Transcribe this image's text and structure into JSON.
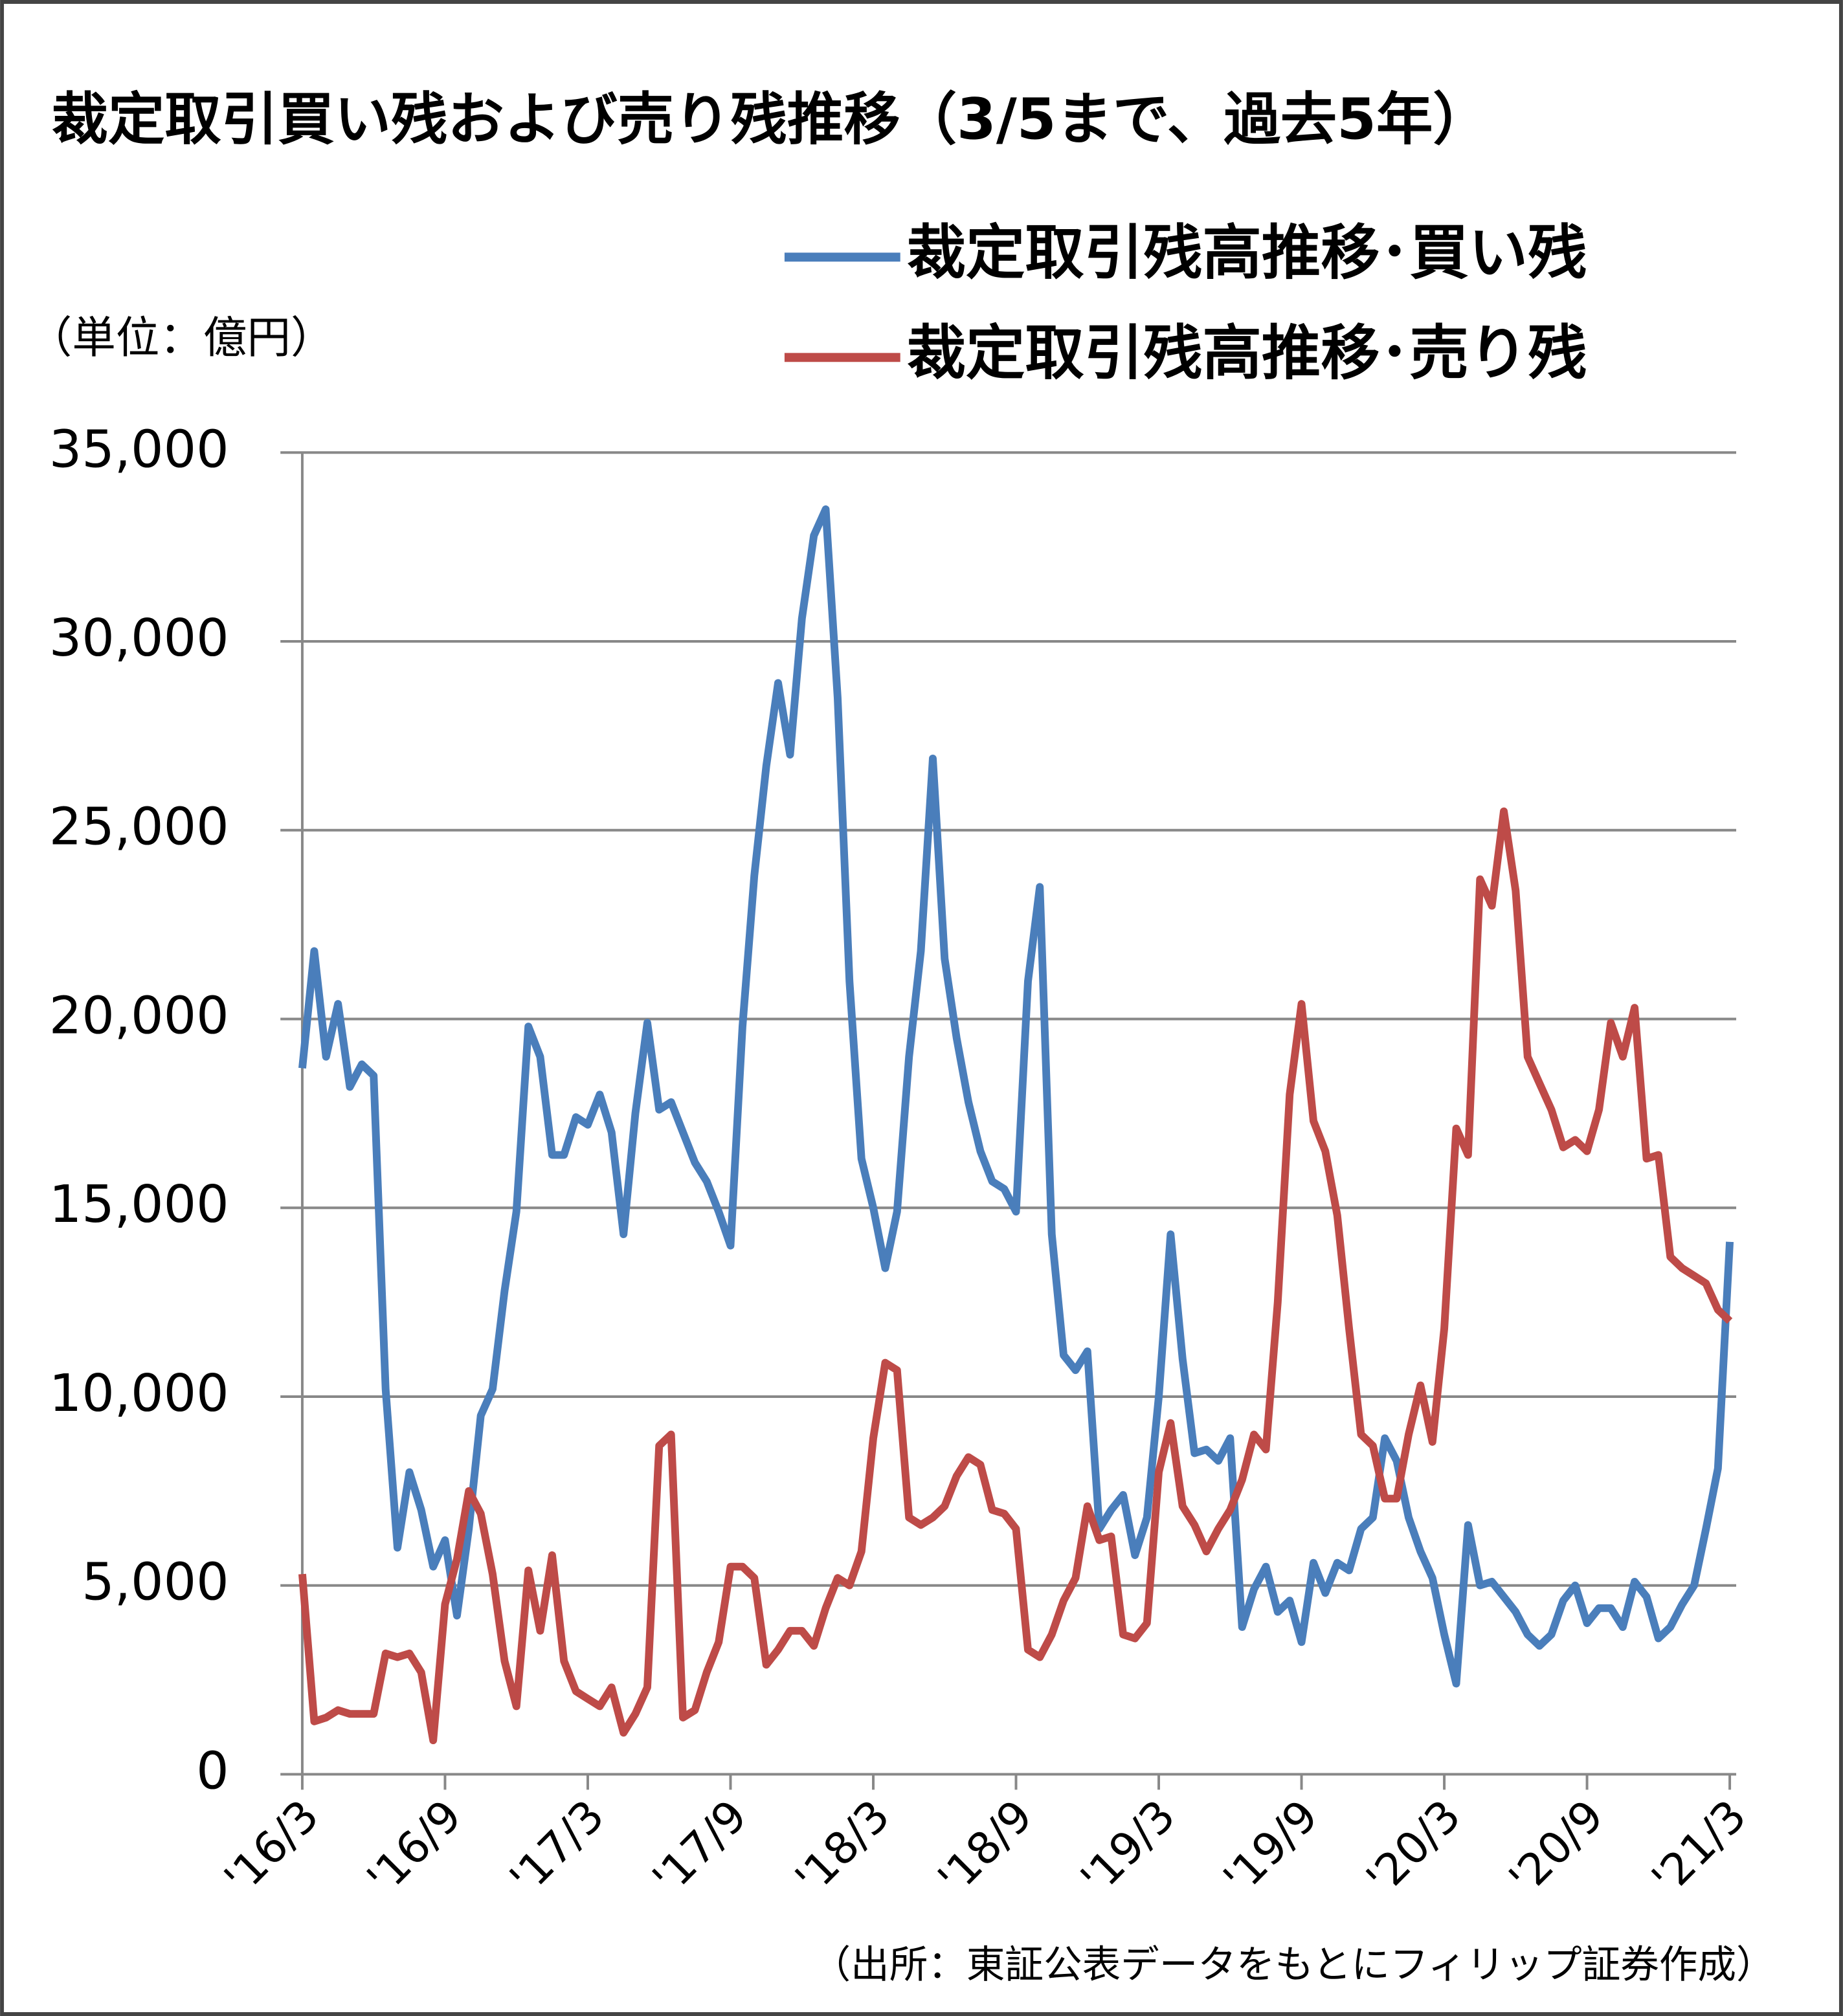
{
  "chart_data": {
    "type": "line",
    "title": "裁定取引買い残および売り残推移（3/5まで、過去5年）",
    "y_label": "（単位：億円）",
    "source": "（出所：東証公表データをもとにフィリップ証券作成）",
    "legend": "top-right",
    "grid": true,
    "x": [
      0,
      0.5,
      1,
      1.5,
      2,
      2.5,
      3,
      3.5,
      4,
      4.5,
      5,
      5.5,
      6,
      6.5,
      7,
      7.5,
      8,
      8.5,
      9,
      9.5,
      10,
      10.5,
      11,
      11.5,
      12,
      12.5,
      13,
      13.5,
      14,
      14.5,
      15,
      15.5,
      16,
      16.5,
      17,
      17.5,
      18,
      18.5,
      19,
      19.5,
      20,
      20.5,
      21,
      21.5,
      22,
      22.5,
      23,
      23.5,
      24,
      24.5,
      25,
      25.5,
      26,
      26.5,
      27,
      27.5,
      28,
      28.5,
      29,
      29.5,
      30,
      30.5,
      31,
      31.5,
      32,
      32.5,
      33,
      33.5,
      34,
      34.5,
      35,
      35.5,
      36,
      36.5,
      37,
      37.5,
      38,
      38.5,
      39,
      39.5,
      40,
      40.5,
      41,
      41.5,
      42,
      42.5,
      43,
      43.5,
      44,
      44.5,
      45,
      45.5,
      46,
      46.5,
      47,
      47.5,
      48,
      48.5,
      49,
      49.5,
      50,
      50.5,
      51,
      51.5,
      52,
      52.5,
      53,
      53.5,
      54,
      54.5,
      55,
      55.5,
      56,
      56.5,
      57,
      57.5,
      58,
      58.5,
      59,
      59.5,
      60
    ],
    "xlim": [
      0,
      60
    ],
    "xticks": [
      {
        "value": 0,
        "label": "'16/3"
      },
      {
        "value": 6,
        "label": "'16/9"
      },
      {
        "value": 12,
        "label": "'17/3"
      },
      {
        "value": 18,
        "label": "'17/9"
      },
      {
        "value": 24,
        "label": "'18/3"
      },
      {
        "value": 30,
        "label": "'18/9"
      },
      {
        "value": 36,
        "label": "'19/3"
      },
      {
        "value": 42,
        "label": "'19/9"
      },
      {
        "value": 48,
        "label": "'20/3"
      },
      {
        "value": 54,
        "label": "'20/9"
      },
      {
        "value": 60,
        "label": "'21/3"
      }
    ],
    "ylim": [
      0,
      35000
    ],
    "yticks": [
      0,
      {
        "value": 5000,
        "label": "5,000"
      },
      {
        "value": 10000,
        "label": "10,000"
      },
      {
        "value": 15000,
        "label": "15,000"
      },
      {
        "value": 20000,
        "label": "20,000"
      },
      {
        "value": 25000,
        "label": "25,000"
      },
      {
        "value": 30000,
        "label": "30,000"
      },
      {
        "value": 35000,
        "label": "35,000"
      }
    ],
    "series": [
      {
        "name": "裁定取引残高推移･買い残",
        "color": "#4a7ebb",
        "values": [
          18700,
          21800,
          19000,
          20400,
          18200,
          18800,
          18500,
          10200,
          6000,
          8000,
          7000,
          5500,
          6200,
          4200,
          6500,
          9500,
          10200,
          12800,
          14900,
          19800,
          19000,
          16400,
          16400,
          17400,
          17200,
          18000,
          17000,
          14300,
          17500,
          19900,
          17600,
          17800,
          17000,
          16200,
          15700,
          14900,
          14000,
          19800,
          23800,
          26700,
          28900,
          27000,
          30600,
          32800,
          33500,
          28500,
          21000,
          16300,
          15000,
          13400,
          14900,
          19000,
          21800,
          26900,
          21600,
          19500,
          17800,
          16500,
          15700,
          15500,
          14900,
          21000,
          23500,
          14300,
          11100,
          10700,
          11200,
          6500,
          7000,
          7400,
          5800,
          6800,
          10000,
          14300,
          11000,
          8500,
          8600,
          8300,
          8900,
          3900,
          4900,
          5500,
          4300,
          4600,
          3500,
          5600,
          4800,
          5600,
          5400,
          6500,
          6800,
          8900,
          8300,
          6800,
          5900,
          5200,
          3700,
          2400,
          6600,
          5000,
          5100,
          4700,
          4300,
          3700,
          3400,
          3700,
          4600,
          5000,
          4000,
          4400,
          4400,
          3900,
          5100,
          4700,
          3600,
          3900,
          4500,
          5000,
          6500,
          8100,
          14100
        ]
      },
      {
        "name": "裁定取引残高推移･売り残",
        "color": "#be4b48",
        "values": [
          5300,
          1400,
          1500,
          1700,
          1600,
          1600,
          1600,
          3200,
          3100,
          3200,
          2700,
          900,
          4500,
          5700,
          7500,
          6900,
          5300,
          3000,
          1800,
          5400,
          3800,
          5800,
          3000,
          2200,
          2000,
          1800,
          2300,
          1100,
          1600,
          2300,
          8700,
          9000,
          1500,
          1700,
          2700,
          3500,
          5500,
          5500,
          5200,
          2900,
          3300,
          3800,
          3800,
          3400,
          4400,
          5200,
          5000,
          5900,
          8900,
          10900,
          10700,
          6800,
          6600,
          6800,
          7100,
          7900,
          8400,
          8200,
          7000,
          6900,
          6500,
          3300,
          3100,
          3700,
          4600,
          5200,
          7100,
          6200,
          6300,
          3700,
          3600,
          4000,
          8000,
          9300,
          7100,
          6600,
          5900,
          6500,
          7000,
          7800,
          9000,
          8600,
          12500,
          18000,
          20400,
          17300,
          16500,
          14800,
          11800,
          9000,
          8700,
          7300,
          7300,
          9000,
          10300,
          8800,
          11800,
          17100,
          16400,
          23700,
          23000,
          25500,
          23400,
          19000,
          18300,
          17600,
          16600,
          16800,
          16500,
          17600,
          19900,
          19000,
          20300,
          16300,
          16400,
          13700,
          13400,
          13200,
          13000,
          12300,
          12000
        ]
      }
    ]
  }
}
